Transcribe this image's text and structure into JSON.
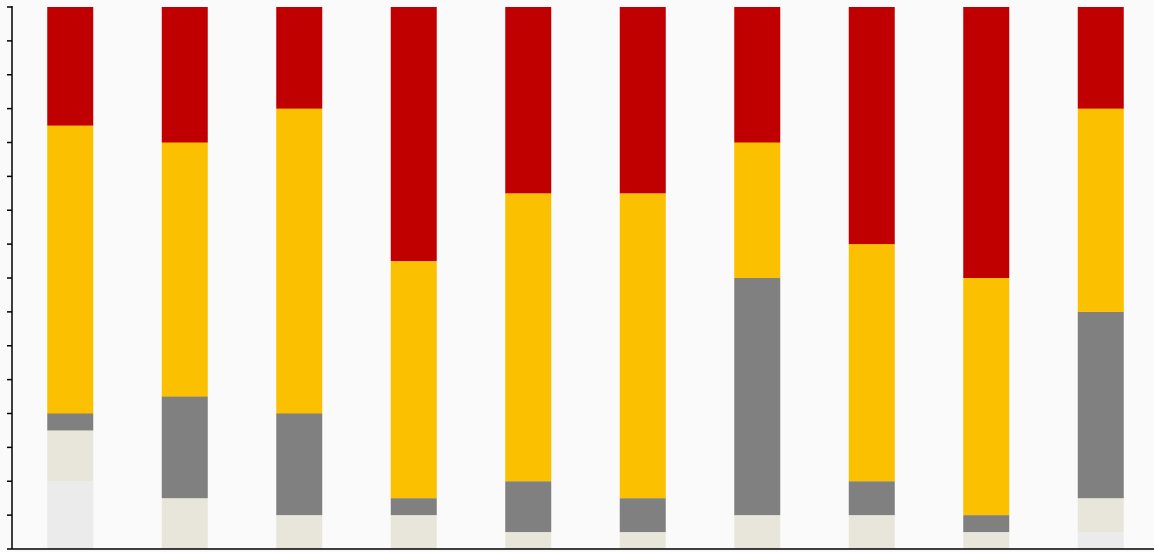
{
  "chart_data": {
    "type": "stacked_bar",
    "categories": [
      null,
      null,
      null,
      null,
      null,
      null,
      null,
      null,
      null,
      null
    ],
    "series": [
      {
        "color": "#ebebeb",
        "values": [
          4,
          0,
          0,
          0,
          0,
          0,
          0,
          0,
          0,
          1
        ]
      },
      {
        "color": "#e8e6da",
        "values": [
          3,
          3,
          2,
          2,
          1,
          1,
          2,
          2,
          1,
          2
        ]
      },
      {
        "color": "#808080",
        "values": [
          1,
          6,
          6,
          1,
          3,
          2,
          14,
          2,
          1,
          11
        ]
      },
      {
        "color": "#fbc000",
        "values": [
          17,
          15,
          18,
          14,
          17,
          18,
          8,
          14,
          14,
          12
        ]
      },
      {
        "color": "#c00000",
        "values": [
          7,
          8,
          6,
          15,
          11,
          11,
          8,
          14,
          16,
          6
        ]
      }
    ],
    "ylim": [
      0,
      32
    ],
    "yticks": [
      0,
      2,
      4,
      6,
      8,
      10,
      12,
      14,
      16,
      18,
      20,
      22,
      24,
      26,
      28,
      30,
      32
    ]
  }
}
